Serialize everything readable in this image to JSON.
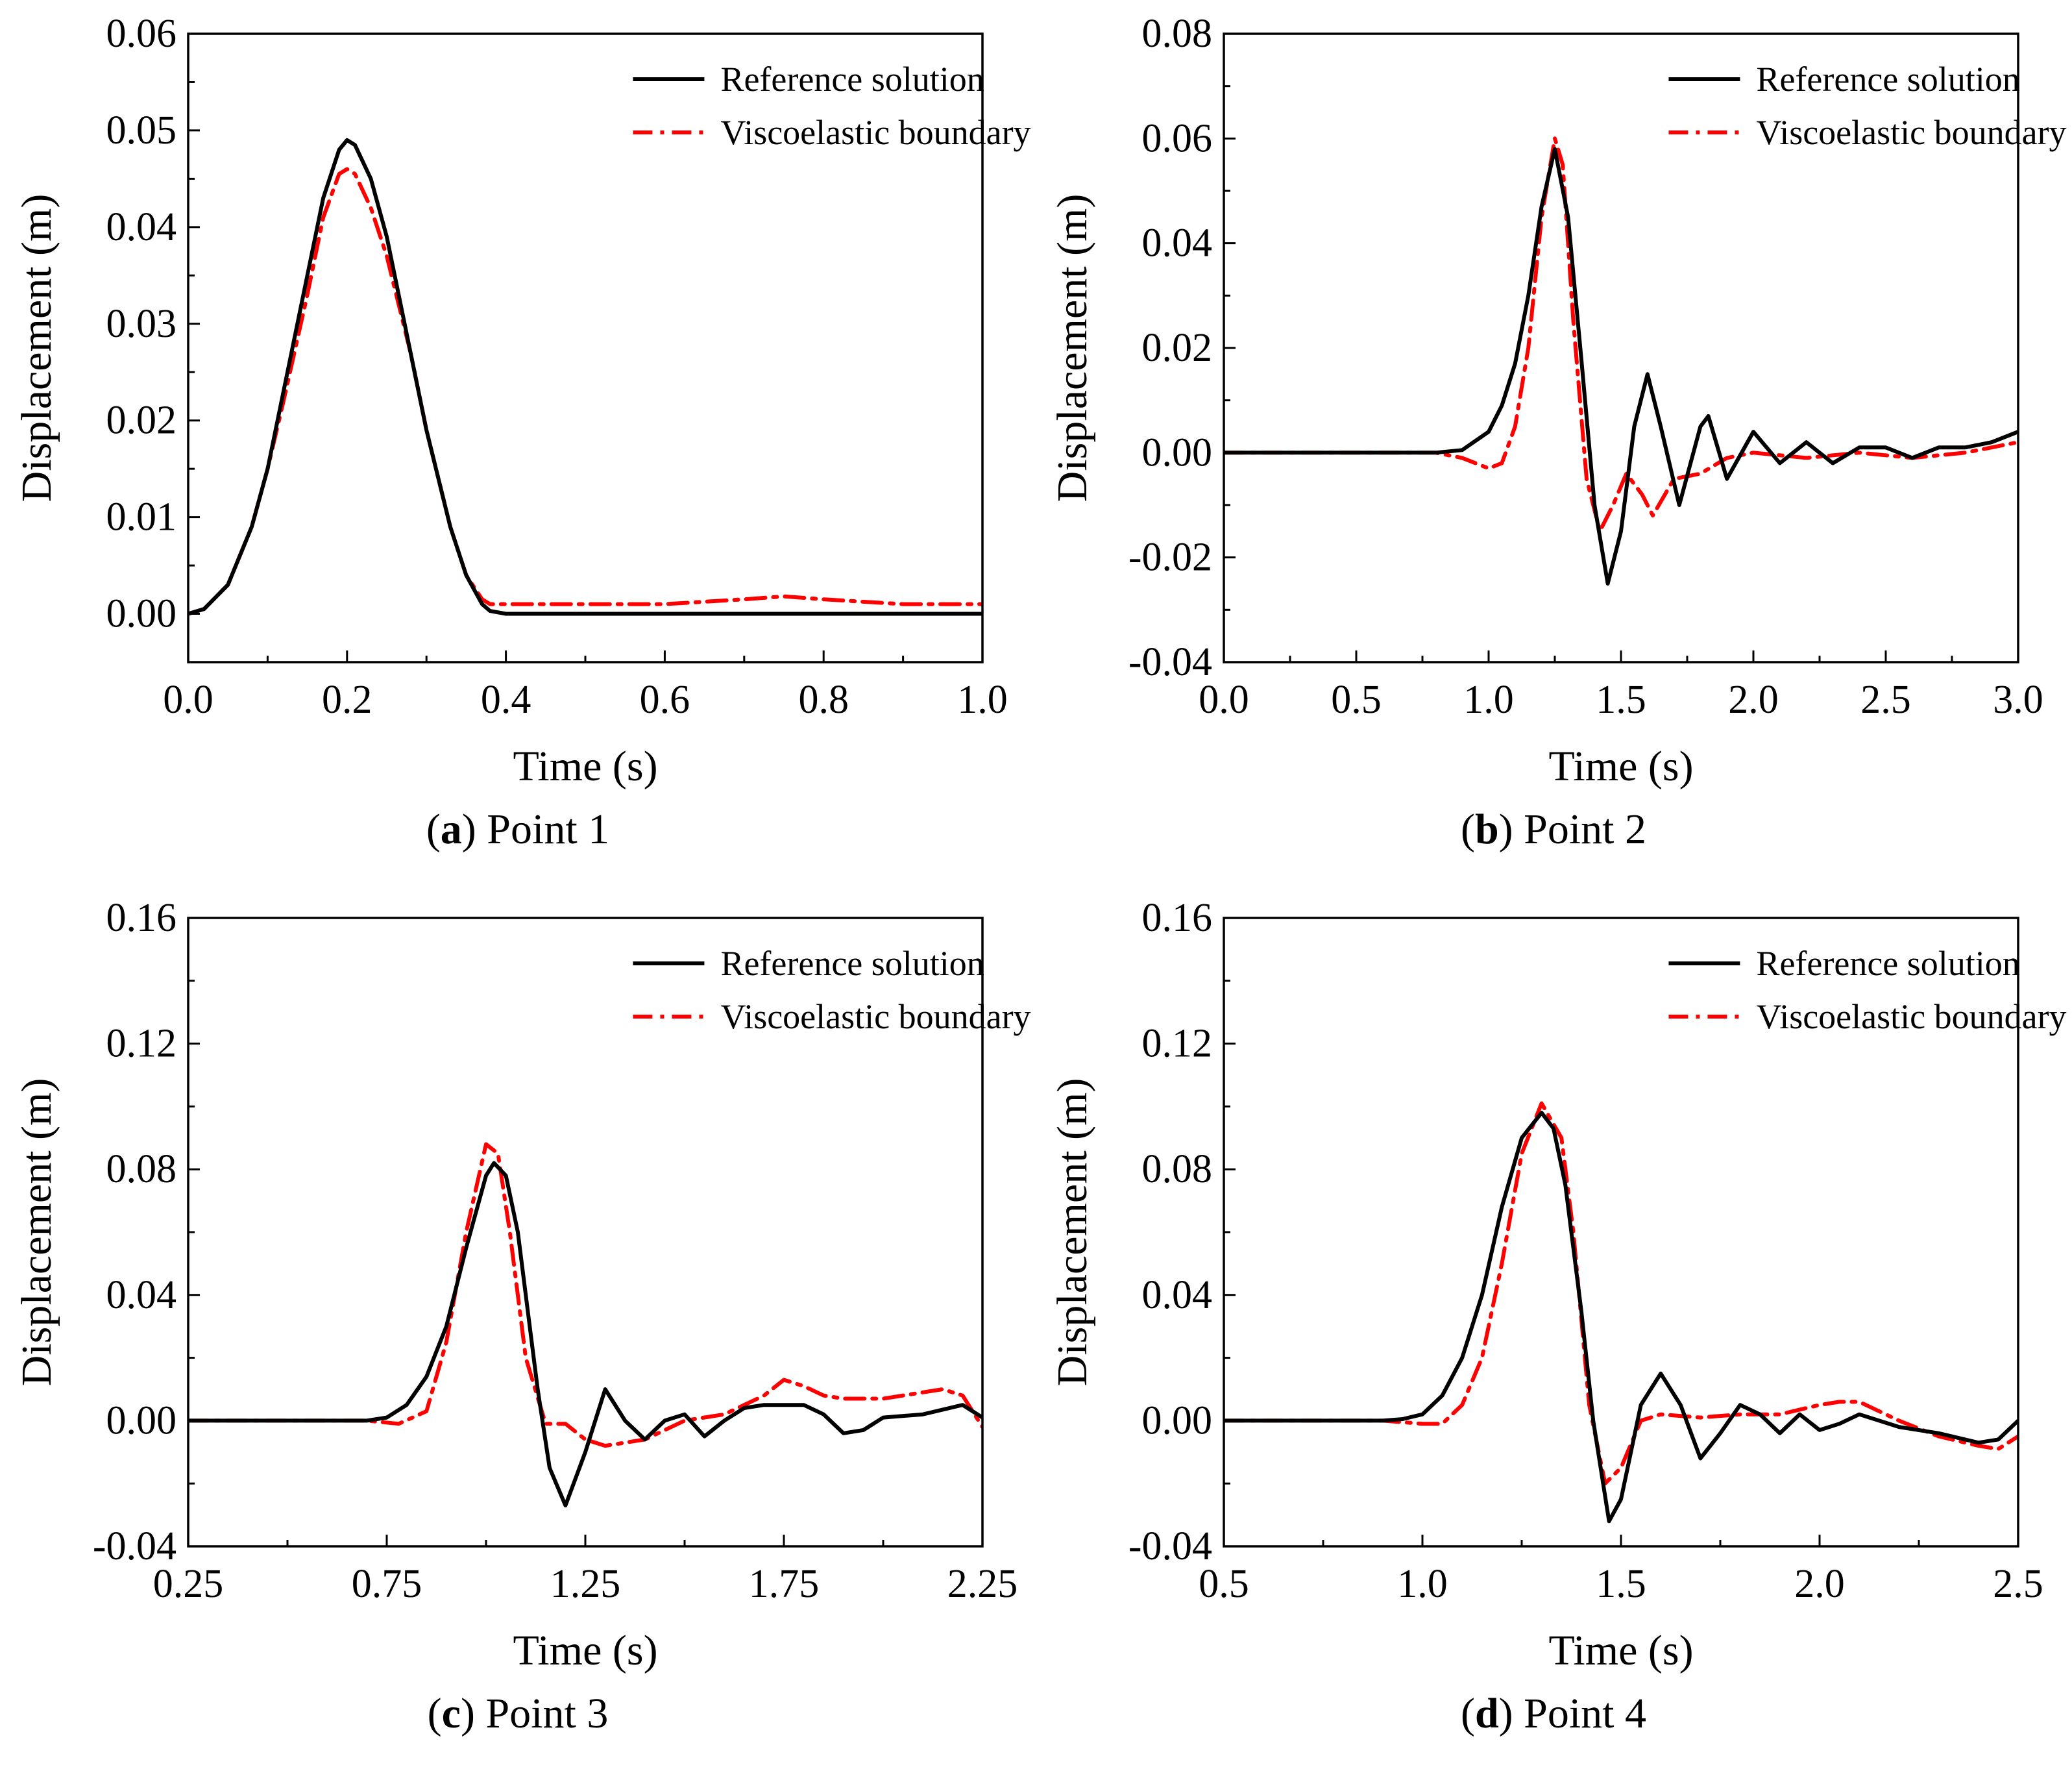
{
  "legend_labels": {
    "reference": "Reference solution",
    "viscoelastic": "Viscoelastic boundary"
  },
  "colors": {
    "reference": "#000000",
    "viscoelastic": "#ff0000"
  },
  "chart_data": [
    {
      "type": "line",
      "caption_letter": "a",
      "caption_text": "Point 1",
      "xlabel": "Time (s)",
      "ylabel": "Displacement (m)",
      "xlim": [
        0,
        1
      ],
      "ylim": [
        -0.005,
        0.06
      ],
      "xticks": [
        0,
        0.2,
        0.4,
        0.6,
        0.8,
        1.0
      ],
      "xtick_labels": [
        "0.0",
        "0.2",
        "0.4",
        "0.6",
        "0.8",
        "1.0"
      ],
      "yticks": [
        0,
        0.01,
        0.02,
        0.03,
        0.04,
        0.05,
        0.06
      ],
      "ytick_labels": [
        "0.00",
        "0.01",
        "0.02",
        "0.03",
        "0.04",
        "0.05",
        "0.06"
      ],
      "legend": "top-right",
      "series": [
        {
          "name": "Reference solution",
          "style": "solid",
          "x": [
            0,
            0.02,
            0.05,
            0.08,
            0.1,
            0.12,
            0.15,
            0.17,
            0.19,
            0.2,
            0.21,
            0.23,
            0.25,
            0.28,
            0.3,
            0.33,
            0.35,
            0.37,
            0.38,
            0.4,
            0.5,
            0.6,
            0.7,
            0.8,
            0.9,
            1.0
          ],
          "y": [
            0,
            0.0005,
            0.003,
            0.009,
            0.015,
            0.023,
            0.035,
            0.043,
            0.048,
            0.049,
            0.0485,
            0.045,
            0.039,
            0.027,
            0.019,
            0.009,
            0.004,
            0.001,
            0.0003,
            0,
            0,
            0,
            0,
            0,
            0,
            0
          ]
        },
        {
          "name": "Viscoelastic boundary",
          "style": "dashdot",
          "x": [
            0,
            0.02,
            0.05,
            0.08,
            0.1,
            0.12,
            0.15,
            0.17,
            0.19,
            0.2,
            0.21,
            0.23,
            0.25,
            0.28,
            0.3,
            0.33,
            0.35,
            0.37,
            0.38,
            0.4,
            0.5,
            0.6,
            0.7,
            0.75,
            0.8,
            0.9,
            1.0
          ],
          "y": [
            0,
            0.0005,
            0.003,
            0.009,
            0.015,
            0.022,
            0.033,
            0.041,
            0.0455,
            0.046,
            0.0455,
            0.042,
            0.037,
            0.027,
            0.019,
            0.009,
            0.004,
            0.0015,
            0.001,
            0.001,
            0.001,
            0.001,
            0.0015,
            0.0018,
            0.0015,
            0.001,
            0.001
          ]
        }
      ]
    },
    {
      "type": "line",
      "caption_letter": "b",
      "caption_text": "Point 2",
      "xlabel": "Time (s)",
      "ylabel": "Displacement (m)",
      "xlim": [
        0,
        3
      ],
      "ylim": [
        -0.04,
        0.08
      ],
      "xticks": [
        0,
        0.5,
        1.0,
        1.5,
        2.0,
        2.5,
        3.0
      ],
      "xtick_labels": [
        "0.0",
        "0.5",
        "1.0",
        "1.5",
        "2.0",
        "2.5",
        "3.0"
      ],
      "yticks": [
        -0.04,
        -0.02,
        0,
        0.02,
        0.04,
        0.06,
        0.08
      ],
      "ytick_labels": [
        "-0.04",
        "-0.02",
        "0.00",
        "0.02",
        "0.04",
        "0.06",
        "0.08"
      ],
      "legend": "top-right",
      "series": [
        {
          "name": "Reference solution",
          "style": "solid",
          "x": [
            0,
            0.8,
            0.9,
            1.0,
            1.05,
            1.1,
            1.15,
            1.2,
            1.25,
            1.3,
            1.35,
            1.4,
            1.45,
            1.5,
            1.55,
            1.6,
            1.65,
            1.72,
            1.8,
            1.83,
            1.9,
            2.0,
            2.1,
            2.2,
            2.3,
            2.4,
            2.5,
            2.6,
            2.7,
            2.8,
            2.9,
            3.0
          ],
          "y": [
            0,
            0,
            0.0005,
            0.004,
            0.009,
            0.017,
            0.03,
            0.047,
            0.058,
            0.045,
            0.018,
            -0.01,
            -0.025,
            -0.015,
            0.005,
            0.015,
            0.005,
            -0.01,
            0.005,
            0.007,
            -0.005,
            0.004,
            -0.002,
            0.002,
            -0.002,
            0.001,
            0.001,
            -0.001,
            0.001,
            0.001,
            0.002,
            0.004
          ]
        },
        {
          "name": "Viscoelastic boundary",
          "style": "dashdot",
          "x": [
            0,
            0.8,
            0.9,
            1.0,
            1.05,
            1.1,
            1.15,
            1.2,
            1.25,
            1.28,
            1.32,
            1.37,
            1.42,
            1.47,
            1.52,
            1.58,
            1.62,
            1.7,
            1.8,
            1.9,
            2.0,
            2.2,
            2.4,
            2.6,
            2.8,
            3.0
          ],
          "y": [
            0,
            0,
            -0.001,
            -0.003,
            -0.002,
            0.005,
            0.02,
            0.045,
            0.06,
            0.055,
            0.025,
            -0.005,
            -0.015,
            -0.01,
            -0.004,
            -0.008,
            -0.012,
            -0.005,
            -0.004,
            -0.001,
            0.0,
            -0.001,
            0.0,
            -0.001,
            0.0,
            0.002
          ]
        }
      ]
    },
    {
      "type": "line",
      "caption_letter": "c",
      "caption_text": "Point 3",
      "xlabel": "Time (s)",
      "ylabel": "Displacement (m)",
      "xlim": [
        0.25,
        2.25
      ],
      "ylim": [
        -0.04,
        0.16
      ],
      "xticks": [
        0.25,
        0.75,
        1.25,
        1.75,
        2.25
      ],
      "xtick_labels": [
        "0.25",
        "0.75",
        "1.25",
        "1.75",
        "2.25"
      ],
      "yticks": [
        -0.04,
        0,
        0.04,
        0.08,
        0.12,
        0.16
      ],
      "ytick_labels": [
        "-0.04",
        "0.00",
        "0.04",
        "0.08",
        "0.12",
        "0.16"
      ],
      "legend": "top-right",
      "series": [
        {
          "name": "Reference solution",
          "style": "solid",
          "x": [
            0.25,
            0.7,
            0.75,
            0.8,
            0.85,
            0.9,
            0.95,
            1.0,
            1.02,
            1.05,
            1.08,
            1.1,
            1.13,
            1.16,
            1.2,
            1.25,
            1.3,
            1.35,
            1.4,
            1.45,
            1.5,
            1.55,
            1.6,
            1.65,
            1.7,
            1.8,
            1.85,
            1.9,
            1.95,
            2.0,
            2.1,
            2.2,
            2.25
          ],
          "y": [
            0,
            0,
            0.001,
            0.005,
            0.014,
            0.03,
            0.055,
            0.078,
            0.082,
            0.078,
            0.06,
            0.04,
            0.01,
            -0.015,
            -0.027,
            -0.01,
            0.01,
            0.0,
            -0.006,
            0.0,
            0.002,
            -0.005,
            0.0,
            0.004,
            0.005,
            0.005,
            0.002,
            -0.004,
            -0.003,
            0.001,
            0.002,
            0.005,
            0.001
          ]
        },
        {
          "name": "Viscoelastic boundary",
          "style": "dashdot",
          "x": [
            0.25,
            0.7,
            0.78,
            0.85,
            0.9,
            0.95,
            1.0,
            1.03,
            1.06,
            1.1,
            1.15,
            1.2,
            1.25,
            1.3,
            1.35,
            1.4,
            1.5,
            1.6,
            1.7,
            1.75,
            1.8,
            1.85,
            1.9,
            2.0,
            2.1,
            2.15,
            2.2,
            2.25
          ],
          "y": [
            0,
            0,
            -0.001,
            0.003,
            0.025,
            0.06,
            0.088,
            0.085,
            0.06,
            0.02,
            -0.001,
            -0.001,
            -0.006,
            -0.008,
            -0.007,
            -0.006,
            0.0,
            0.002,
            0.008,
            0.013,
            0.011,
            0.008,
            0.007,
            0.007,
            0.009,
            0.01,
            0.008,
            -0.002
          ]
        }
      ]
    },
    {
      "type": "line",
      "caption_letter": "d",
      "caption_text": "Point 4",
      "xlabel": "Time (s)",
      "ylabel": "Displacement (m)",
      "xlim": [
        0.5,
        2.5
      ],
      "ylim": [
        -0.04,
        0.16
      ],
      "xticks": [
        0.5,
        1.0,
        1.5,
        2.0,
        2.5
      ],
      "xtick_labels": [
        "0.5",
        "1.0",
        "1.5",
        "2.0",
        "2.5"
      ],
      "yticks": [
        -0.04,
        0,
        0.04,
        0.08,
        0.12,
        0.16
      ],
      "ytick_labels": [
        "-0.04",
        "0.00",
        "0.04",
        "0.08",
        "0.12",
        "0.16"
      ],
      "legend": "top-right",
      "series": [
        {
          "name": "Reference solution",
          "style": "solid",
          "x": [
            0.5,
            0.9,
            0.95,
            1.0,
            1.05,
            1.1,
            1.15,
            1.2,
            1.25,
            1.3,
            1.33,
            1.36,
            1.4,
            1.43,
            1.47,
            1.5,
            1.55,
            1.6,
            1.65,
            1.7,
            1.75,
            1.8,
            1.85,
            1.9,
            1.95,
            2.0,
            2.05,
            2.1,
            2.2,
            2.3,
            2.4,
            2.45,
            2.5
          ],
          "y": [
            0,
            0,
            0.0005,
            0.002,
            0.008,
            0.02,
            0.04,
            0.068,
            0.09,
            0.098,
            0.093,
            0.075,
            0.035,
            0.0,
            -0.032,
            -0.025,
            0.005,
            0.015,
            0.005,
            -0.012,
            -0.004,
            0.005,
            0.002,
            -0.004,
            0.002,
            -0.003,
            -0.001,
            0.002,
            -0.002,
            -0.004,
            -0.007,
            -0.006,
            0.0
          ]
        },
        {
          "name": "Viscoelastic boundary",
          "style": "dashdot",
          "x": [
            0.5,
            0.9,
            1.0,
            1.05,
            1.1,
            1.15,
            1.2,
            1.25,
            1.3,
            1.35,
            1.38,
            1.42,
            1.46,
            1.5,
            1.55,
            1.6,
            1.7,
            1.8,
            1.9,
            2.0,
            2.05,
            2.1,
            2.2,
            2.3,
            2.4,
            2.45,
            2.5
          ],
          "y": [
            0,
            0,
            -0.001,
            -0.001,
            0.005,
            0.02,
            0.05,
            0.085,
            0.101,
            0.09,
            0.06,
            0.005,
            -0.02,
            -0.015,
            0.0,
            0.002,
            0.001,
            0.002,
            0.002,
            0.005,
            0.006,
            0.006,
            0.0,
            -0.005,
            -0.008,
            -0.009,
            -0.005
          ]
        }
      ]
    }
  ]
}
